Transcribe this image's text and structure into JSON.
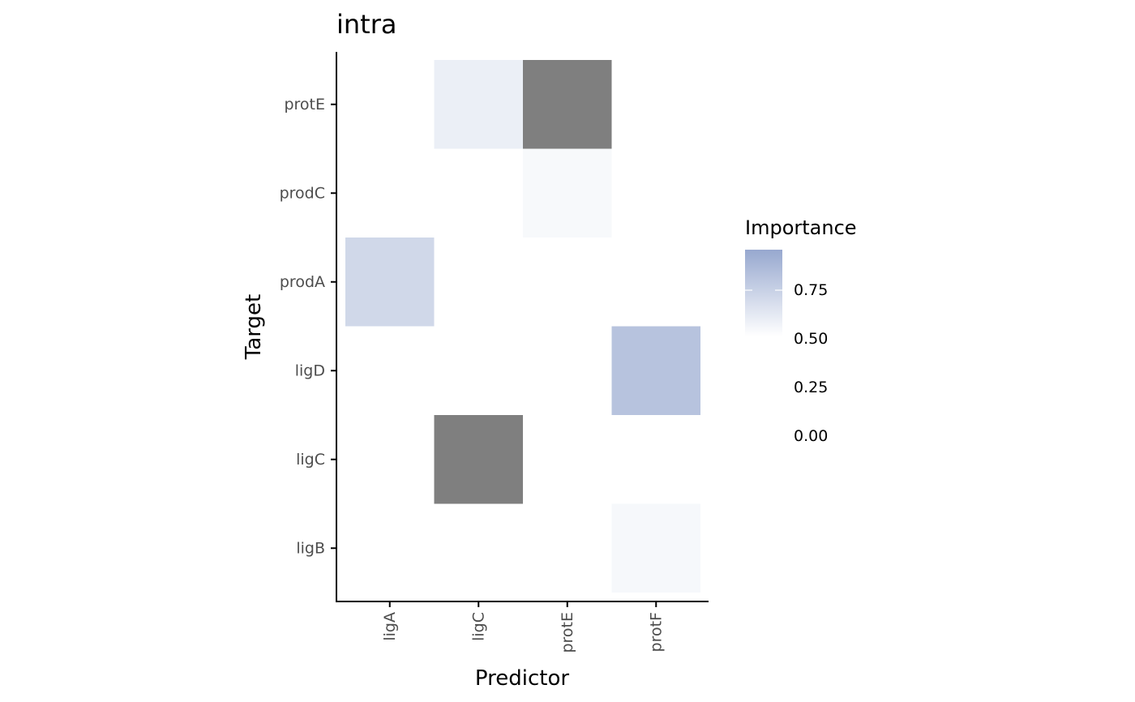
{
  "chart_data": {
    "type": "heatmap",
    "title": "intra",
    "xlabel": "Predictor",
    "ylabel": "Target",
    "x_categories": [
      "ligA",
      "ligC",
      "protE",
      "protF"
    ],
    "y_categories": [
      "ligB",
      "ligC",
      "ligD",
      "prodA",
      "prodC",
      "protE"
    ],
    "cells": [
      {
        "x": "ligC",
        "y": "protE",
        "value": 0.18
      },
      {
        "x": "protE",
        "y": "protE",
        "value": null
      },
      {
        "x": "protE",
        "y": "prodC",
        "value": 0.07
      },
      {
        "x": "ligA",
        "y": "prodA",
        "value": 0.43
      },
      {
        "x": "protF",
        "y": "ligD",
        "value": 0.66
      },
      {
        "x": "ligC",
        "y": "ligC",
        "value": null
      },
      {
        "x": "protF",
        "y": "ligB",
        "value": 0.08
      }
    ],
    "na_color": "#7f7f7f",
    "legend": {
      "title": "Importance",
      "ticks": [
        0.75,
        0.5,
        0.25,
        0.0
      ],
      "tick_labels": [
        "0.75",
        "0.50",
        "0.25",
        "0.00"
      ],
      "low_color": "#ffffff",
      "high_color": "#97a8cf",
      "placement": "right"
    },
    "grid": false
  }
}
